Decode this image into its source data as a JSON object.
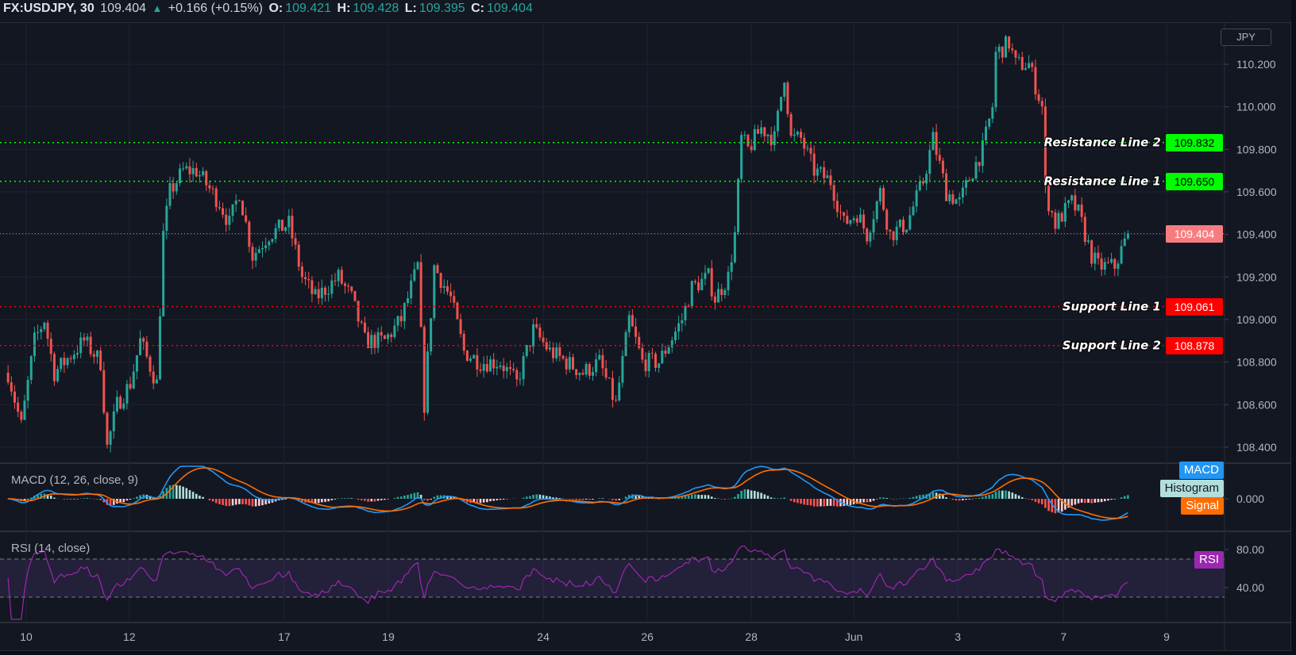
{
  "header": {
    "symbol": "FX:USDJPY, 30",
    "last": "109.404",
    "change": "+0.166 (+0.15%)",
    "o_label": "O:",
    "o": "109.421",
    "h_label": "H:",
    "h": "109.428",
    "l_label": "L:",
    "l": "109.395",
    "c_label": "C:",
    "c": "109.404"
  },
  "currency_button": "JPY",
  "colors": {
    "up": "#26a69a",
    "down": "#ef5350",
    "resistance": "#00ff00",
    "support": "#ff0000",
    "price_line": "#f77c80",
    "macd": "#2196f3",
    "signal": "#ff6d00",
    "rsi": "#9c27b0"
  },
  "chart_data": {
    "type": "candlestick",
    "symbol": "FX:USDJPY",
    "interval": "30",
    "ylim": [
      108.32,
      110.38
    ],
    "price_ticks": [
      "110.200",
      "110.000",
      "109.800",
      "109.600",
      "109.400",
      "109.200",
      "109.000",
      "108.800",
      "108.600",
      "108.400"
    ],
    "close_path": [
      [
        1,
        108.75
      ],
      [
        5,
        108.5
      ],
      [
        9,
        108.9
      ],
      [
        12,
        109.0
      ],
      [
        15,
        108.75
      ],
      [
        24,
        108.9
      ],
      [
        29,
        108.8
      ],
      [
        31,
        108.4
      ],
      [
        34,
        108.6
      ],
      [
        38,
        108.7
      ],
      [
        41,
        108.9
      ],
      [
        46,
        108.7
      ],
      [
        48,
        109.4
      ],
      [
        50,
        109.6
      ],
      [
        54,
        109.7
      ],
      [
        58,
        109.7
      ],
      [
        65,
        109.55
      ],
      [
        68,
        109.45
      ],
      [
        71,
        109.6
      ],
      [
        75,
        109.3
      ],
      [
        80,
        109.4
      ],
      [
        86,
        109.45
      ],
      [
        90,
        109.2
      ],
      [
        94,
        109.1
      ],
      [
        101,
        109.2
      ],
      [
        105,
        109.1
      ],
      [
        109,
        108.9
      ],
      [
        115,
        108.9
      ],
      [
        120,
        109.0
      ],
      [
        125,
        109.25
      ],
      [
        127,
        108.6
      ],
      [
        130,
        109.25
      ],
      [
        135,
        109.1
      ],
      [
        139,
        108.85
      ],
      [
        144,
        108.8
      ],
      [
        150,
        108.8
      ],
      [
        155,
        108.7
      ],
      [
        160,
        108.95
      ],
      [
        165,
        108.85
      ],
      [
        170,
        108.8
      ],
      [
        175,
        108.75
      ],
      [
        180,
        108.8
      ],
      [
        185,
        108.6
      ],
      [
        189,
        109.0
      ],
      [
        193,
        108.8
      ],
      [
        198,
        108.8
      ],
      [
        205,
        109.0
      ],
      [
        208,
        109.15
      ],
      [
        213,
        109.2
      ],
      [
        215,
        109.1
      ],
      [
        219,
        109.2
      ],
      [
        221,
        109.4
      ],
      [
        223,
        109.85
      ],
      [
        225,
        109.8
      ],
      [
        229,
        109.9
      ],
      [
        233,
        109.85
      ],
      [
        236,
        110.15
      ],
      [
        238,
        109.85
      ],
      [
        241,
        109.85
      ],
      [
        245,
        109.7
      ],
      [
        250,
        109.65
      ],
      [
        254,
        109.45
      ],
      [
        258,
        109.5
      ],
      [
        261,
        109.4
      ],
      [
        265,
        109.6
      ],
      [
        268,
        109.4
      ],
      [
        273,
        109.45
      ],
      [
        278,
        109.65
      ],
      [
        281,
        109.85
      ],
      [
        285,
        109.6
      ],
      [
        289,
        109.55
      ],
      [
        293,
        109.7
      ],
      [
        296,
        109.8
      ],
      [
        299,
        110.0
      ],
      [
        300,
        110.25
      ],
      [
        304,
        110.3
      ],
      [
        306,
        110.2
      ],
      [
        310,
        110.2
      ],
      [
        314,
        110.0
      ],
      [
        315,
        109.6
      ],
      [
        318,
        109.45
      ],
      [
        323,
        109.55
      ],
      [
        325,
        109.5
      ],
      [
        329,
        109.3
      ],
      [
        331,
        109.25
      ],
      [
        336,
        109.25
      ],
      [
        340,
        109.404
      ]
    ],
    "levels": [
      {
        "name": "Resistance Line 2",
        "value": "109.832",
        "kind": "resistance"
      },
      {
        "name": "Resistance Line 1",
        "value": "109.650",
        "kind": "resistance"
      },
      {
        "name": "Support Line 1",
        "value": "109.061",
        "kind": "support"
      },
      {
        "name": "Support Line 2",
        "value": "108.878",
        "kind": "support"
      }
    ],
    "current_price": "109.404",
    "x_ticks": [
      {
        "label": "10",
        "bar": 6.5
      },
      {
        "label": "12",
        "bar": 37.7
      },
      {
        "label": "17",
        "bar": 84.6
      },
      {
        "label": "19",
        "bar": 116.1
      },
      {
        "label": "24",
        "bar": 163
      },
      {
        "label": "26",
        "bar": 194.5
      },
      {
        "label": "28",
        "bar": 226
      },
      {
        "label": "Jun",
        "bar": 257
      },
      {
        "label": "3",
        "bar": 288.5
      },
      {
        "label": "7",
        "bar": 320.5
      },
      {
        "label": "9",
        "bar": 351.7
      }
    ],
    "macd": {
      "title": "MACD (12, 26, close, 9)",
      "zero_label": "0.000",
      "legend": [
        "MACD",
        "Histogram",
        "Signal"
      ]
    },
    "rsi": {
      "title": "RSI (14, close)",
      "ticks": [
        "80.00",
        "40.00"
      ],
      "bands": [
        70,
        30
      ],
      "legend": "RSI"
    }
  }
}
